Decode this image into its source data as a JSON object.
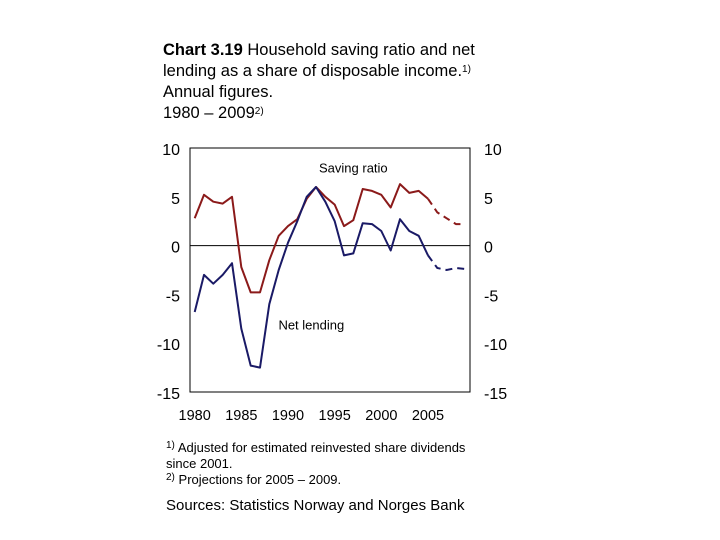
{
  "title": {
    "number": "Chart 3.19",
    "line1": "Household saving ratio and net",
    "line2_pre": "lending as a share of disposable income.",
    "line2_sup": "1)",
    "line3": "Annual figures.",
    "line4_pre": "1980 – 2009",
    "line4_sup": "2)"
  },
  "footnotes": [
    {
      "mark": "1)",
      "text": "Adjusted for estimated reinvested share dividends",
      "text2": "since 2001."
    },
    {
      "mark": "2)",
      "text": "Projections for 2005 – 2009."
    }
  ],
  "source": "Sources: Statistics Norway and Norges Bank",
  "chart_data": {
    "type": "line",
    "ylim": [
      -15,
      10
    ],
    "xlim": [
      1979.5,
      2009.5
    ],
    "yticks": [
      10,
      5,
      0,
      -5,
      -10,
      -15
    ],
    "xticks": [
      1980,
      1985,
      1990,
      1995,
      2000,
      2005
    ],
    "projection_start": 2005,
    "annotations": [
      {
        "text": "Saving ratio",
        "x": 1997,
        "y": 7.5
      },
      {
        "text": "Net lending",
        "x": 1992.5,
        "y": -8.6
      }
    ],
    "x": [
      1980,
      1981,
      1982,
      1983,
      1984,
      1985,
      1986,
      1987,
      1988,
      1989,
      1990,
      1991,
      1992,
      1993,
      1994,
      1995,
      1996,
      1997,
      1998,
      1999,
      2000,
      2001,
      2002,
      2003,
      2004,
      2005,
      2006,
      2007,
      2008,
      2009
    ],
    "series": [
      {
        "name": "Saving ratio",
        "color": "#8B1A1A",
        "values": [
          2.8,
          5.2,
          4.5,
          4.3,
          5.0,
          -2.2,
          -4.8,
          -4.8,
          -1.5,
          1.0,
          2.0,
          2.7,
          4.8,
          6.0,
          5.0,
          4.2,
          2.0,
          2.6,
          5.8,
          5.6,
          5.2,
          3.9,
          6.3,
          5.4,
          5.6,
          4.8,
          3.4,
          2.8,
          2.2,
          2.2
        ]
      },
      {
        "name": "Net lending",
        "color": "#1A1A66",
        "values": [
          -6.8,
          -3.0,
          -3.9,
          -3.0,
          -1.8,
          -8.5,
          -12.3,
          -12.5,
          -6.0,
          -2.5,
          0.3,
          2.5,
          5.0,
          6.0,
          4.5,
          2.5,
          -1.0,
          -0.8,
          2.3,
          2.2,
          1.5,
          -0.5,
          2.7,
          1.5,
          1.0,
          -1.0,
          -2.3,
          -2.5,
          -2.3,
          -2.4
        ]
      }
    ]
  }
}
